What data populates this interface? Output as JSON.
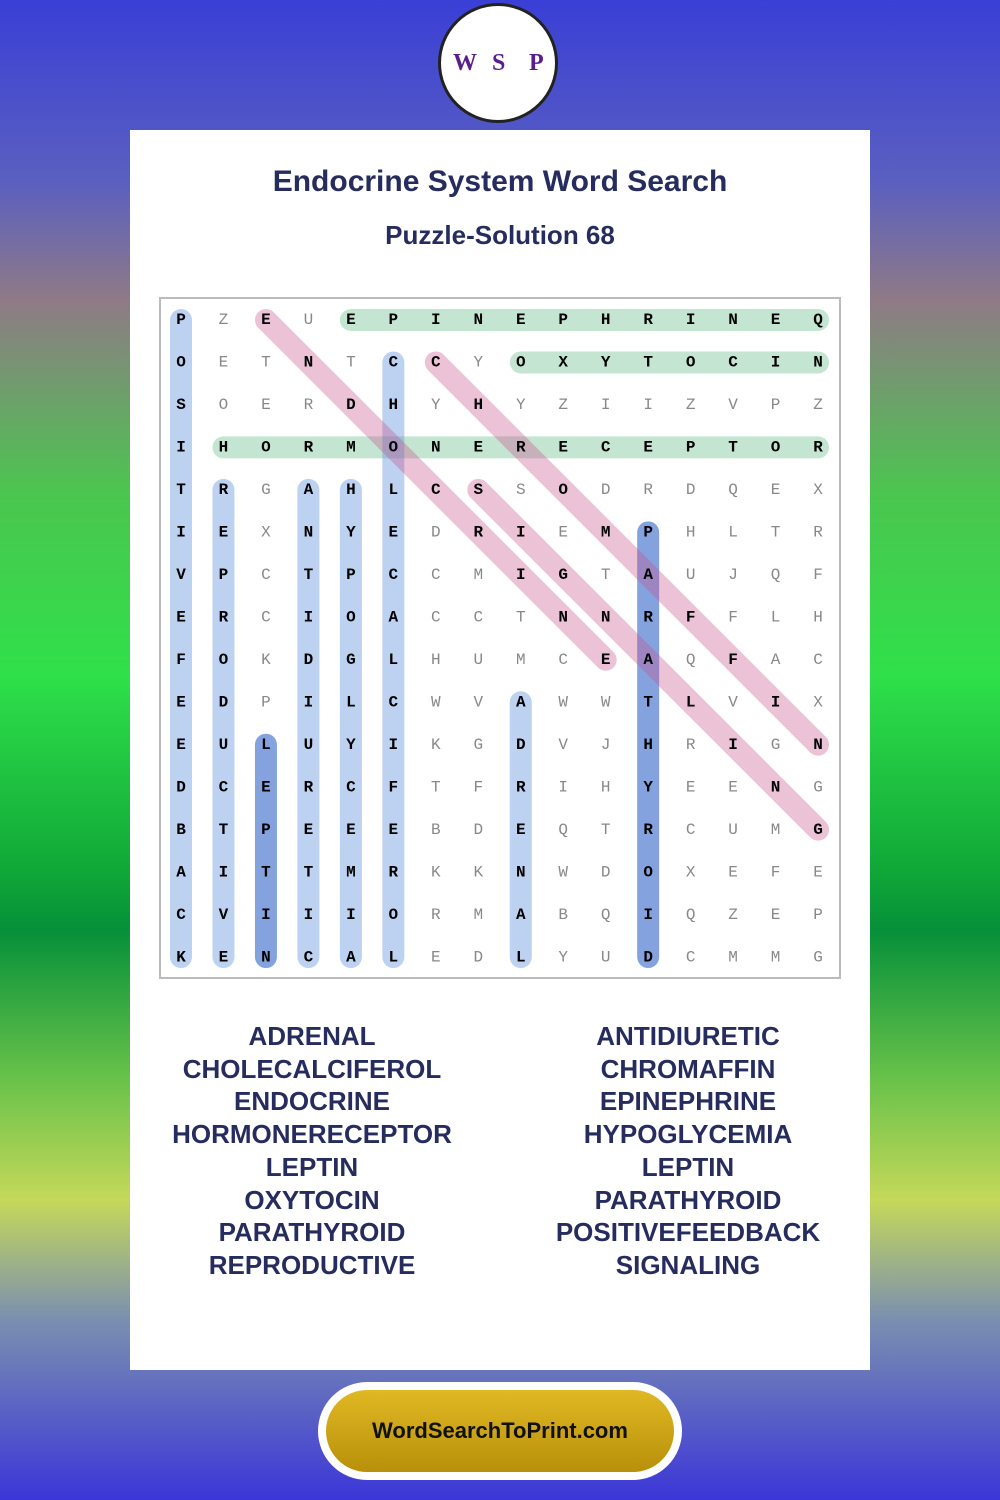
{
  "header": {
    "logo": [
      "W",
      "S",
      "P"
    ],
    "title": "Endocrine System Word Search",
    "subtitle": "Puzzle-Solution 68"
  },
  "grid": {
    "rows": [
      [
        "P",
        "Z",
        "E",
        "U",
        "E",
        "P",
        "I",
        "N",
        "E",
        "P",
        "H",
        "R",
        "I",
        "N",
        "E",
        "Q"
      ],
      [
        "O",
        "E",
        "T",
        "N",
        "T",
        "C",
        "C",
        "Y",
        "O",
        "X",
        "Y",
        "T",
        "O",
        "C",
        "I",
        "N"
      ],
      [
        "S",
        "O",
        "E",
        "R",
        "D",
        "H",
        "Y",
        "H",
        "Y",
        "Z",
        "I",
        "I",
        "Z",
        "V",
        "P",
        "Z"
      ],
      [
        "I",
        "H",
        "O",
        "R",
        "M",
        "O",
        "N",
        "E",
        "R",
        "E",
        "C",
        "E",
        "P",
        "T",
        "O",
        "R"
      ],
      [
        "T",
        "R",
        "G",
        "A",
        "H",
        "L",
        "C",
        "S",
        "S",
        "O",
        "D",
        "R",
        "D",
        "Q",
        "E",
        "X"
      ],
      [
        "I",
        "E",
        "X",
        "N",
        "Y",
        "E",
        "D",
        "R",
        "I",
        "E",
        "M",
        "P",
        "H",
        "L",
        "T",
        "R"
      ],
      [
        "V",
        "P",
        "C",
        "T",
        "P",
        "C",
        "C",
        "M",
        "I",
        "G",
        "T",
        "A",
        "U",
        "J",
        "Q",
        "F"
      ],
      [
        "E",
        "R",
        "C",
        "I",
        "O",
        "A",
        "C",
        "C",
        "T",
        "N",
        "N",
        "R",
        "F",
        "F",
        "L",
        "H"
      ],
      [
        "F",
        "O",
        "K",
        "D",
        "G",
        "L",
        "H",
        "U",
        "M",
        "C",
        "E",
        "A",
        "Q",
        "F",
        "A",
        "C"
      ],
      [
        "E",
        "D",
        "P",
        "I",
        "L",
        "C",
        "W",
        "V",
        "A",
        "W",
        "W",
        "T",
        "L",
        "V",
        "I",
        "X"
      ],
      [
        "E",
        "U",
        "L",
        "U",
        "Y",
        "I",
        "K",
        "G",
        "D",
        "V",
        "J",
        "H",
        "R",
        "I",
        "G",
        "N"
      ],
      [
        "D",
        "C",
        "E",
        "R",
        "C",
        "F",
        "T",
        "F",
        "R",
        "I",
        "H",
        "Y",
        "E",
        "E",
        "N",
        "G"
      ],
      [
        "B",
        "T",
        "P",
        "E",
        "E",
        "E",
        "B",
        "D",
        "E",
        "Q",
        "T",
        "R",
        "C",
        "U",
        "M",
        "G"
      ],
      [
        "A",
        "I",
        "T",
        "T",
        "M",
        "R",
        "K",
        "K",
        "N",
        "W",
        "D",
        "O",
        "X",
        "E",
        "F",
        "E"
      ],
      [
        "C",
        "V",
        "I",
        "I",
        "I",
        "O",
        "R",
        "M",
        "A",
        "B",
        "Q",
        "I",
        "Q",
        "Z",
        "E",
        "P"
      ],
      [
        "K",
        "E",
        "N",
        "C",
        "A",
        "L",
        "E",
        "D",
        "L",
        "Y",
        "U",
        "D",
        "C",
        "M",
        "M",
        "G"
      ]
    ]
  },
  "words": {
    "left": [
      "ADRENAL",
      "CHOLECALCIFEROL",
      "ENDOCRINE",
      "HORMONERECEPTOR",
      "LEPTIN",
      "OXYTOCIN",
      "PARATHYROID",
      "REPRODUCTIVE"
    ],
    "right": [
      "ANTIDIURETIC",
      "CHROMAFFIN",
      "EPINEPHRINE",
      "HYPOGLYCEMIA",
      "LEPTIN",
      "PARATHYROID",
      "POSITIVEFEEDBACK",
      "SIGNALING"
    ]
  },
  "footer": {
    "site": "WordSearchToPrint.com"
  }
}
